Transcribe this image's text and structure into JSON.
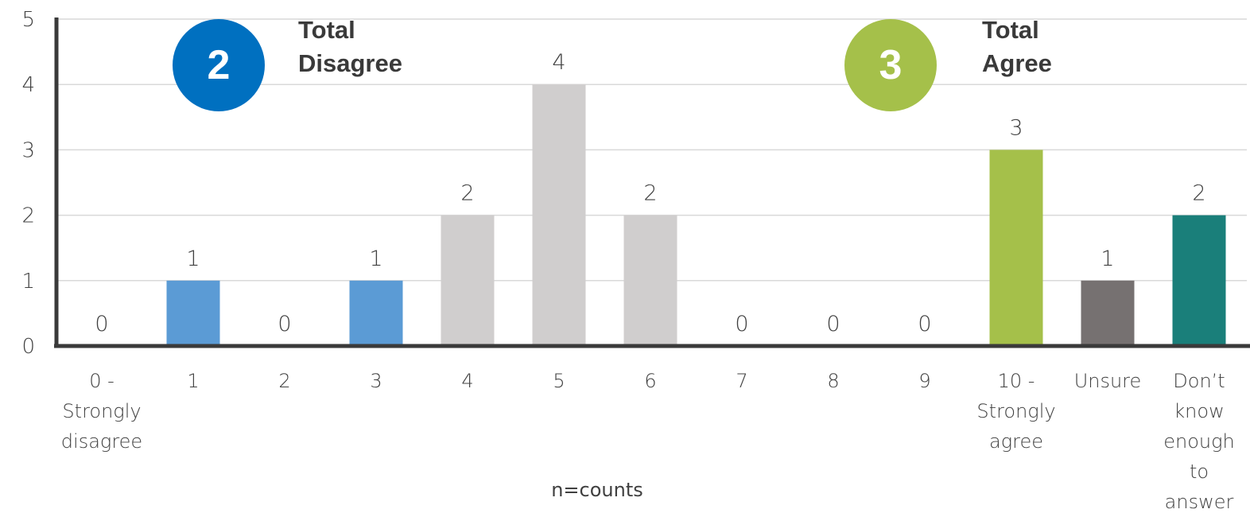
{
  "chart_data": {
    "type": "bar",
    "categories": [
      [
        "0 -",
        "Strongly",
        "disagree"
      ],
      [
        "1"
      ],
      [
        "2"
      ],
      [
        "3"
      ],
      [
        "4"
      ],
      [
        "5"
      ],
      [
        "6"
      ],
      [
        "7"
      ],
      [
        "8"
      ],
      [
        "9"
      ],
      [
        "10 -",
        "Strongly",
        "agree"
      ],
      [
        "Unsure"
      ],
      [
        "Don’t",
        "know",
        "enough",
        "to",
        "answer"
      ]
    ],
    "values": [
      0,
      1,
      0,
      1,
      2,
      4,
      2,
      0,
      0,
      0,
      3,
      1,
      2
    ],
    "bar_colors": [
      "#5b9bd5",
      "#5b9bd5",
      "#5b9bd5",
      "#5b9bd5",
      "#d0cece",
      "#d0cece",
      "#d0cece",
      "#a5c04a",
      "#a5c04a",
      "#a5c04a",
      "#a5c04a",
      "#767171",
      "#1a7f7a"
    ],
    "title": "",
    "xlabel": "n=counts",
    "ylabel": "",
    "ylim": [
      0,
      5
    ],
    "yticks": [
      0,
      1,
      2,
      3,
      4,
      5
    ],
    "grid": true,
    "data_labels": true
  },
  "summary": {
    "disagree": {
      "count": "2",
      "label_line1": "Total",
      "label_line2": "Disagree",
      "color": "#0070c0"
    },
    "agree": {
      "count": "3",
      "label_line1": "Total",
      "label_line2": "Agree",
      "color": "#a5c04a"
    }
  }
}
